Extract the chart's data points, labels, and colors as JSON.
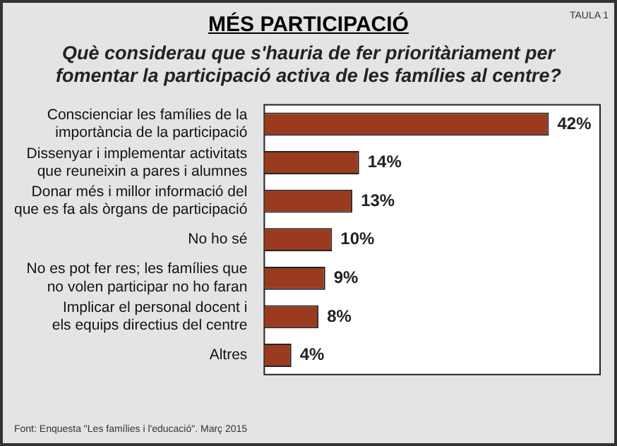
{
  "chart_data": {
    "type": "bar",
    "orientation": "horizontal",
    "title": "MÉS PARTICIPACIÓ",
    "subtitle": "Què considerau que s'hauria de fer prioritàriament per fomentar la participació activa de les famílies al centre?",
    "categories": [
      "Conscienciar les famílies de la importància de la participació",
      "Dissenyar i implementar activitats que reuneixin a pares i alumnes",
      "Donar més i millor informació del que es fa als òrgans de participació",
      "No ho sé",
      "No es pot fer res; les famílies que no volen participar no ho faran",
      "Implicar el personal docent i els equips directius del centre",
      "Altres"
    ],
    "values": [
      42,
      14,
      13,
      10,
      9,
      8,
      4
    ],
    "value_labels": [
      "42%",
      "14%",
      "13%",
      "10%",
      "9%",
      "8%",
      "4%"
    ],
    "color": "#9a3b20",
    "annotations": [
      "TAULA 1",
      "Font: Enquesta \"Les famílies i l'educació\". Març 2015"
    ]
  }
}
